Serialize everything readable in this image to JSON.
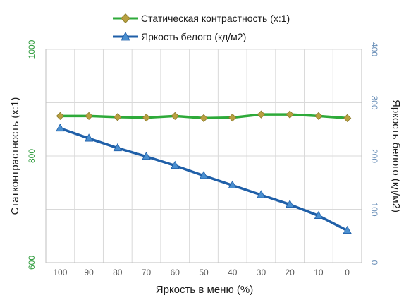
{
  "chart_data": {
    "type": "line",
    "legend_position": "top",
    "grid": true,
    "x": [
      "100",
      "90",
      "80",
      "70",
      "60",
      "50",
      "40",
      "30",
      "20",
      "10",
      "0"
    ],
    "xlabel": "Яркость в меню (%)",
    "ylabel_left": "Статконтрастность  (x:1)",
    "ylabel_right": "Яркость белого (кд/м2)",
    "ylim_left": [
      600,
      1000
    ],
    "ylim_right": [
      0,
      400
    ],
    "yticks_left": [
      "1000",
      "800",
      "600"
    ],
    "yticks_right": [
      "400",
      "300",
      "200",
      "100",
      "0"
    ],
    "series": [
      {
        "name": "Статическая контрастность  (x:1)",
        "axis": "left",
        "color": "#2eaa3a",
        "marker_color": "#b8a040",
        "marker": "diamond",
        "values": [
          875,
          875,
          873,
          872,
          875,
          871,
          872,
          878,
          878,
          875,
          871
        ]
      },
      {
        "name": "Яркость белого (кд/м2)",
        "axis": "right",
        "color": "#1f5fa8",
        "marker_color": "#4a8fd0",
        "marker": "triangle",
        "values": [
          252,
          233,
          215,
          199,
          182,
          163,
          145,
          127,
          109,
          88,
          60
        ]
      }
    ]
  }
}
